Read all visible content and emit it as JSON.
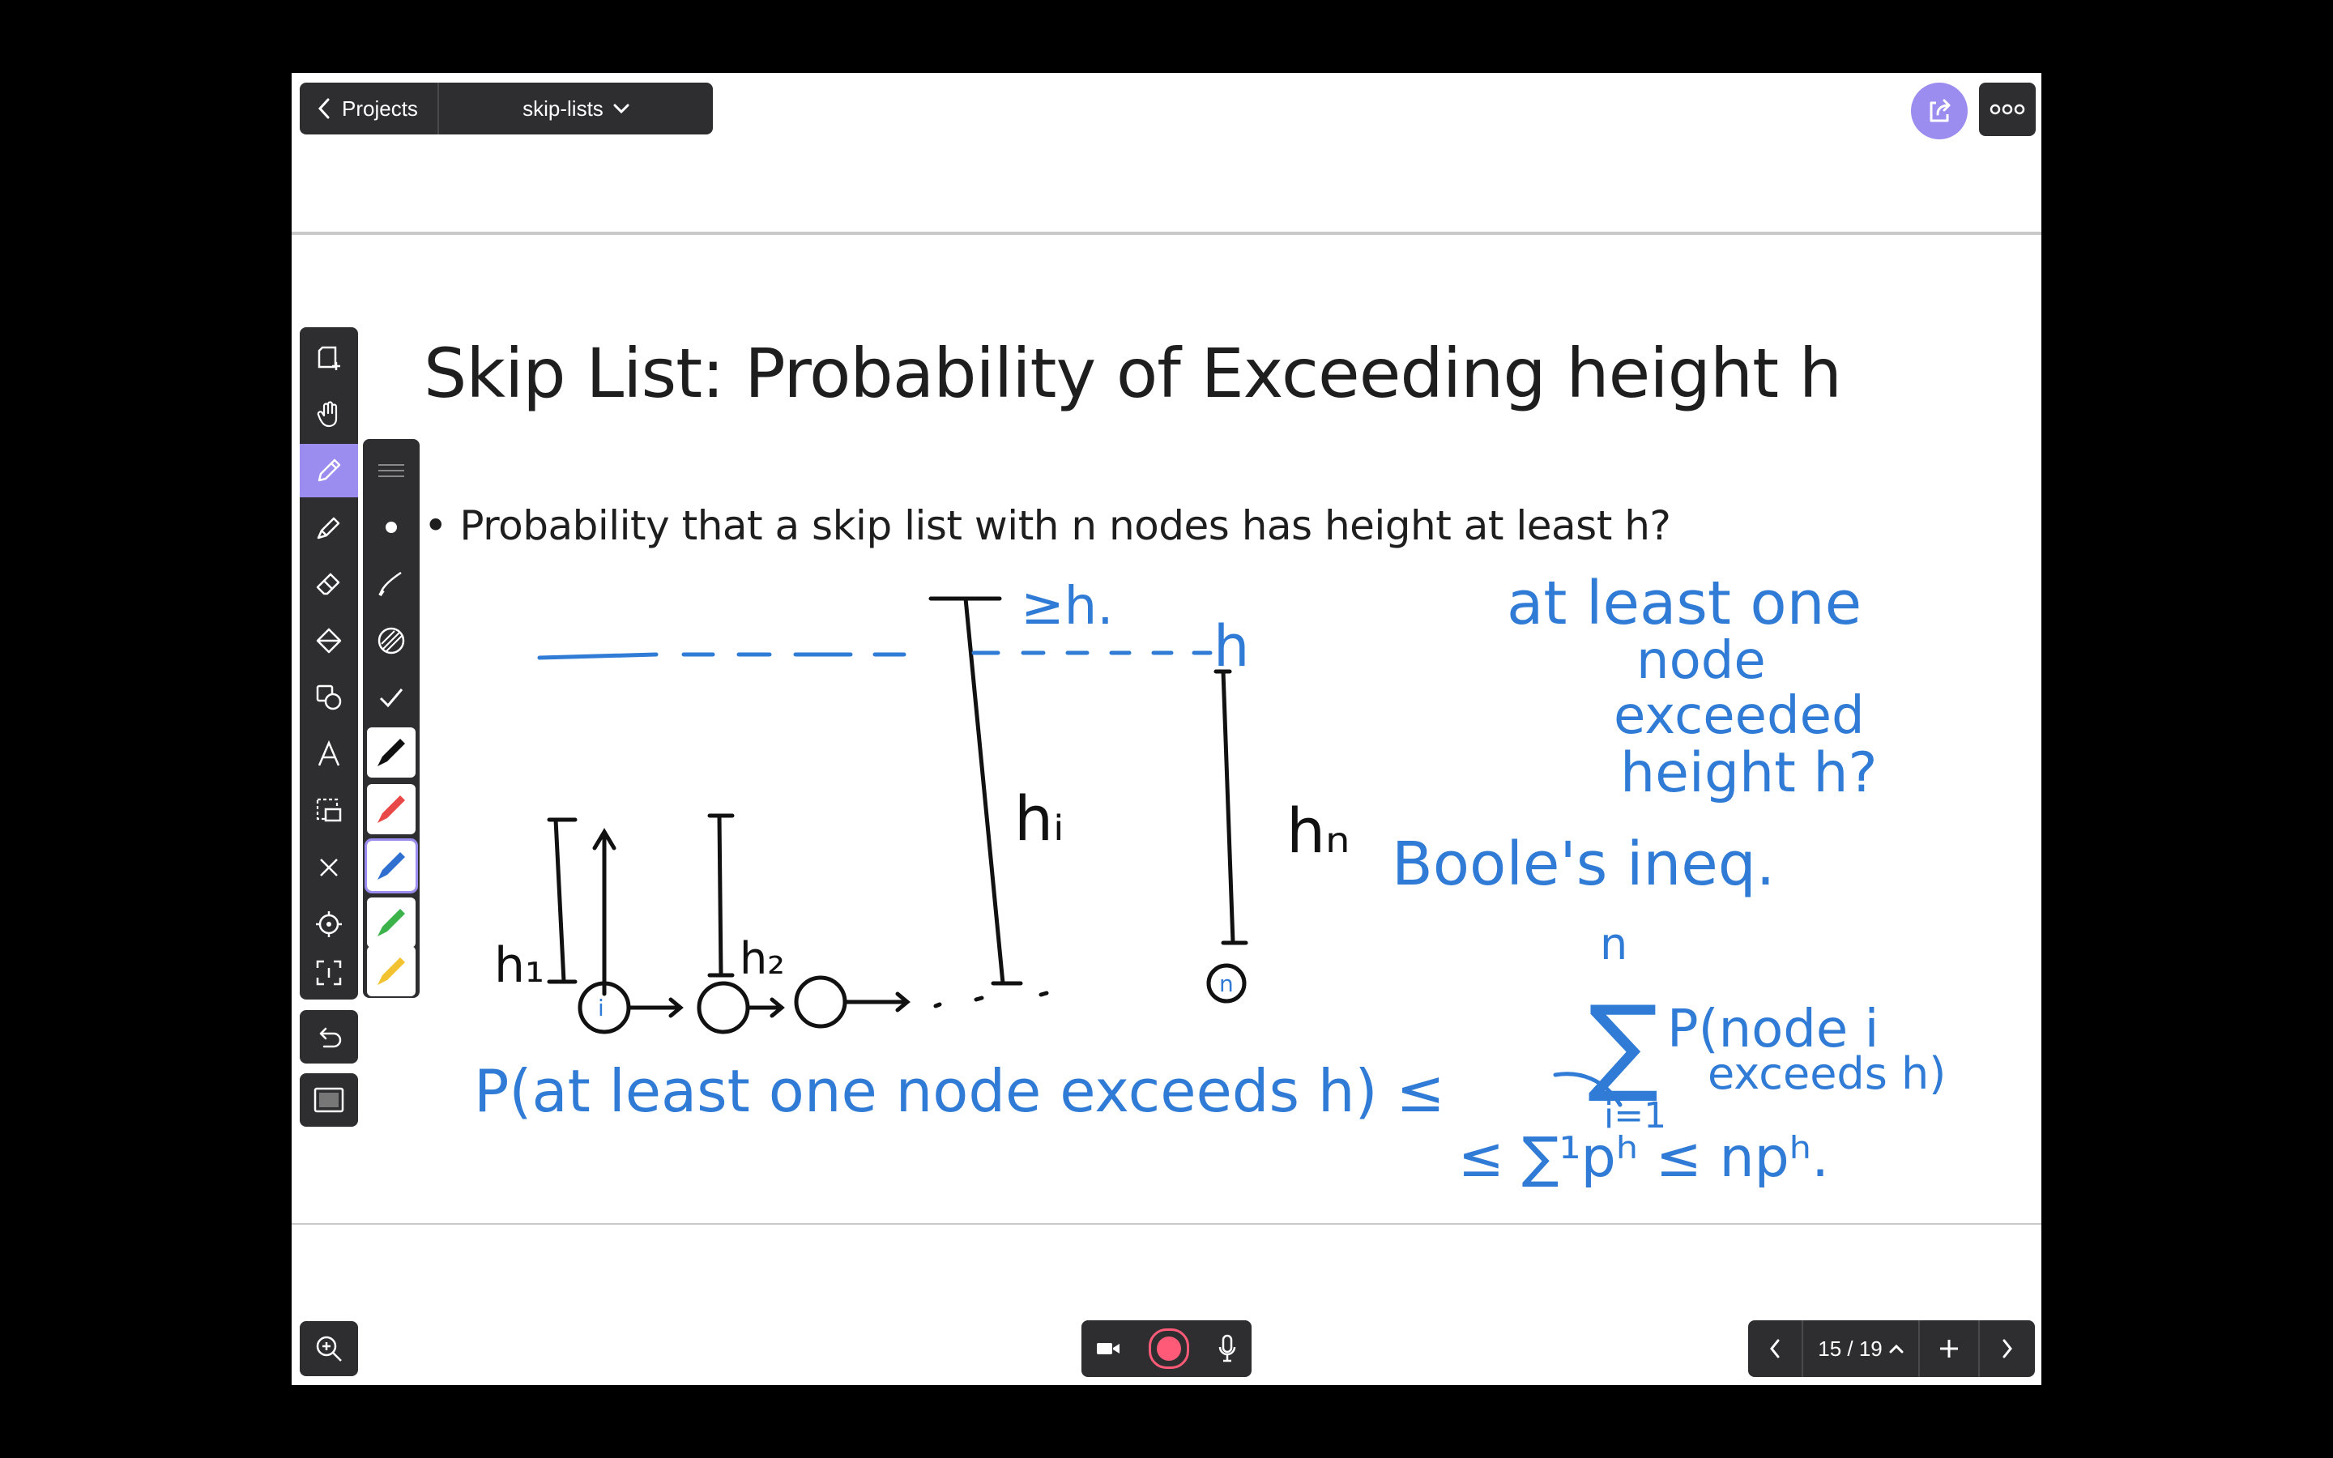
{
  "header": {
    "back_label": "Projects",
    "document_name": "skip-lists"
  },
  "slide": {
    "title": "Skip List: Probability of Exceeding height h",
    "bullet": "Probability that a skip list with n nodes has height at least h?"
  },
  "annotations": {
    "geq_h": "≥h.",
    "h_line_label": "h",
    "h_i": "hᵢ",
    "h_n": "hₙ",
    "h_1": "h₁",
    "h_2": "h₂",
    "node_i": "i",
    "node_n": "n",
    "question": [
      "at least one",
      "node",
      "exceeded",
      "height h?"
    ],
    "booles": "Boole's ineq.",
    "sum_top": "n",
    "sum_bottom": "i=1",
    "probability_lhs": "P(at least one node exceeds h) ≤",
    "sigma": "∑",
    "probability_rhs_1": "P(node i",
    "probability_rhs_2": "exceeds h)",
    "bound_line": "≤ ∑¹pʰ ≤ npʰ."
  },
  "pen_colors": {
    "black": "#111111",
    "red": "#e84848",
    "blue": "#2f6fd0",
    "green": "#3bb34a",
    "yellow": "#f2c230"
  },
  "ink_color": "#2f7bd6",
  "toolbar": {
    "tools": [
      "add-page-icon",
      "hand-icon",
      "pen-icon",
      "highlighter-icon",
      "eraser-icon",
      "fill-icon",
      "shapes-icon",
      "text-icon",
      "selection-icon",
      "clear-icon",
      "laser-pointer-icon",
      "crop-icon"
    ],
    "active_tool": "pen-icon"
  },
  "pager": {
    "current_page": "15",
    "total_pages": "19",
    "label": "15 / 19"
  }
}
